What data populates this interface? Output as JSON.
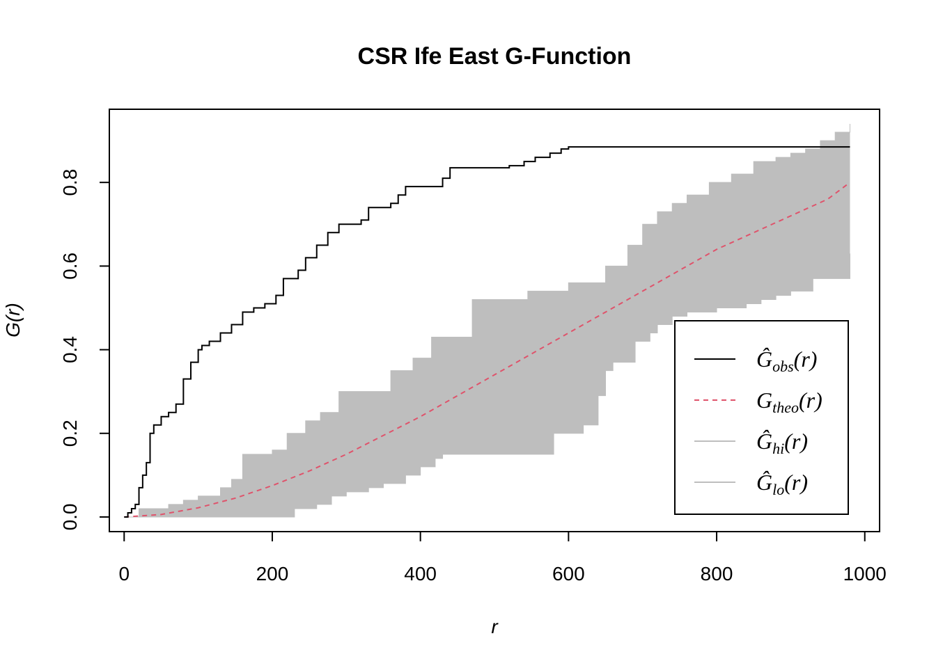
{
  "chart_data": {
    "type": "line",
    "title": "CSR Ife East G-Function",
    "xlabel": "r",
    "ylabel": "G(r)",
    "xlim": [
      -20,
      1020
    ],
    "ylim": [
      -0.035,
      0.975
    ],
    "x_ticks": [
      0,
      200,
      400,
      600,
      800,
      1000
    ],
    "x_tick_labels": [
      "0",
      "200",
      "400",
      "600",
      "800",
      "1000"
    ],
    "y_ticks": [
      0.0,
      0.2,
      0.4,
      0.6,
      0.8
    ],
    "y_tick_labels": [
      "0.0",
      "0.2",
      "0.4",
      "0.6",
      "0.8"
    ],
    "grid": false,
    "legend_position": "bottom-right",
    "colors": {
      "obs": "#000000",
      "theo": "#DF536B",
      "envelope": "#BEBEBE"
    },
    "legend": [
      {
        "key": "obs",
        "symbol": "Ĝ",
        "subscript": "obs",
        "suffix": "(r)"
      },
      {
        "key": "theo",
        "symbol": "G",
        "subscript": "theo",
        "suffix": "(r)"
      },
      {
        "key": "hi",
        "symbol": "Ĝ",
        "subscript": "hi",
        "suffix": "(r)"
      },
      {
        "key": "lo",
        "symbol": "Ĝ",
        "subscript": "lo",
        "suffix": "(r)"
      }
    ],
    "series": [
      {
        "name": "obs",
        "style": "step-solid",
        "x": [
          0,
          5,
          10,
          15,
          20,
          25,
          30,
          35,
          40,
          50,
          60,
          70,
          80,
          90,
          100,
          105,
          115,
          130,
          145,
          160,
          175,
          190,
          205,
          215,
          235,
          245,
          260,
          275,
          290,
          320,
          330,
          360,
          370,
          380,
          430,
          440,
          520,
          540,
          555,
          575,
          590,
          600,
          980
        ],
        "y": [
          0,
          0.01,
          0.02,
          0.03,
          0.07,
          0.1,
          0.13,
          0.2,
          0.22,
          0.24,
          0.25,
          0.27,
          0.33,
          0.37,
          0.4,
          0.41,
          0.42,
          0.44,
          0.46,
          0.49,
          0.5,
          0.51,
          0.53,
          0.57,
          0.59,
          0.62,
          0.65,
          0.68,
          0.7,
          0.71,
          0.74,
          0.75,
          0.77,
          0.79,
          0.81,
          0.835,
          0.84,
          0.85,
          0.86,
          0.87,
          0.88,
          0.885,
          0.885
        ]
      },
      {
        "name": "theo",
        "style": "dashed",
        "x": [
          0,
          50,
          100,
          150,
          200,
          250,
          300,
          350,
          400,
          450,
          500,
          550,
          600,
          650,
          700,
          750,
          800,
          850,
          900,
          950,
          980
        ],
        "y": [
          0,
          0.006,
          0.022,
          0.045,
          0.075,
          0.11,
          0.15,
          0.195,
          0.24,
          0.29,
          0.34,
          0.39,
          0.44,
          0.49,
          0.54,
          0.59,
          0.64,
          0.68,
          0.72,
          0.76,
          0.8
        ]
      },
      {
        "name": "hi",
        "style": "envelope-upper",
        "x": [
          0,
          20,
          60,
          80,
          100,
          130,
          145,
          160,
          200,
          220,
          245,
          265,
          290,
          330,
          360,
          390,
          415,
          470,
          510,
          545,
          600,
          650,
          680,
          700,
          720,
          740,
          760,
          790,
          820,
          850,
          880,
          900,
          920,
          940,
          960,
          980
        ],
        "y": [
          0,
          0.02,
          0.03,
          0.04,
          0.05,
          0.07,
          0.09,
          0.15,
          0.16,
          0.2,
          0.23,
          0.25,
          0.3,
          0.3,
          0.35,
          0.38,
          0.43,
          0.52,
          0.52,
          0.54,
          0.56,
          0.6,
          0.65,
          0.7,
          0.73,
          0.75,
          0.77,
          0.8,
          0.82,
          0.85,
          0.86,
          0.87,
          0.88,
          0.9,
          0.92,
          0.94
        ]
      },
      {
        "name": "lo",
        "style": "envelope-lower",
        "x": [
          0,
          210,
          230,
          260,
          280,
          300,
          330,
          350,
          380,
          400,
          420,
          430,
          450,
          480,
          510,
          550,
          580,
          620,
          640,
          650,
          660,
          690,
          710,
          720,
          740,
          760,
          800,
          840,
          860,
          880,
          900,
          930,
          980
        ],
        "y": [
          0,
          0,
          0.02,
          0.03,
          0.05,
          0.06,
          0.07,
          0.08,
          0.1,
          0.12,
          0.14,
          0.15,
          0.15,
          0.15,
          0.15,
          0.15,
          0.2,
          0.22,
          0.29,
          0.35,
          0.37,
          0.42,
          0.44,
          0.46,
          0.48,
          0.49,
          0.5,
          0.51,
          0.52,
          0.53,
          0.54,
          0.57,
          0.63
        ]
      }
    ]
  }
}
